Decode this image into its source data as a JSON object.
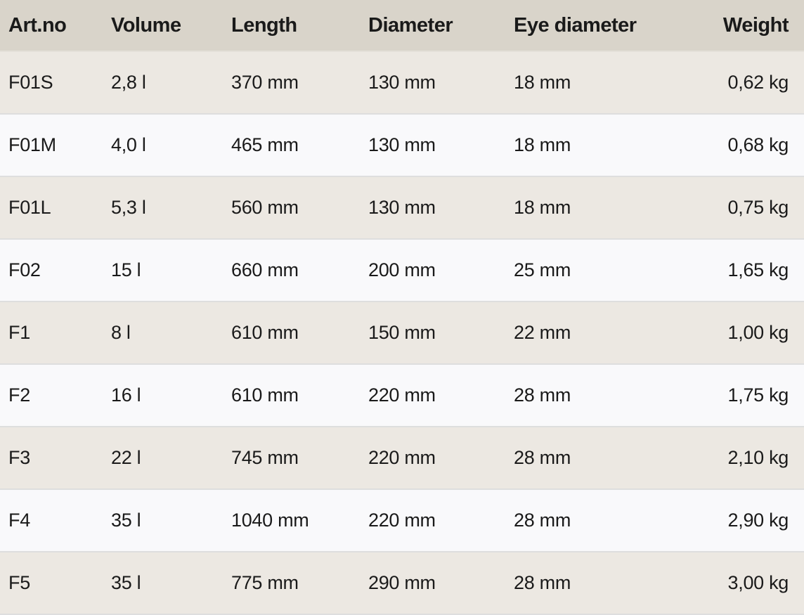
{
  "table": {
    "headers": [
      "Art.no",
      "Volume",
      "Length",
      "Diameter",
      "Eye diameter",
      "Weight"
    ],
    "rows": [
      [
        "F01S",
        "2,8 l",
        "370 mm",
        "130 mm",
        "18 mm",
        "0,62 kg"
      ],
      [
        "F01M",
        "4,0 l",
        "465 mm",
        "130 mm",
        "18 mm",
        "0,68 kg"
      ],
      [
        "F01L",
        "5,3 l",
        "560 mm",
        "130 mm",
        "18 mm",
        "0,75 kg"
      ],
      [
        "F02",
        "15 l",
        "660 mm",
        "200 mm",
        "25 mm",
        "1,65 kg"
      ],
      [
        "F1",
        "8 l",
        "610 mm",
        "150 mm",
        "22 mm",
        "1,00 kg"
      ],
      [
        "F2",
        "16 l",
        "610 mm",
        "220 mm",
        "28 mm",
        "1,75 kg"
      ],
      [
        "F3",
        "22 l",
        "745 mm",
        "220 mm",
        "28 mm",
        "2,10 kg"
      ],
      [
        "F4",
        "35 l",
        "1040 mm",
        "220 mm",
        "28 mm",
        "2,90 kg"
      ],
      [
        "F5",
        "35 l",
        "775 mm",
        "290 mm",
        "28 mm",
        "3,00 kg"
      ]
    ]
  },
  "colors": {
    "header_bg": "#d9d4ca",
    "row_odd": "#ece8e2",
    "row_even": "#f9f9fb"
  }
}
